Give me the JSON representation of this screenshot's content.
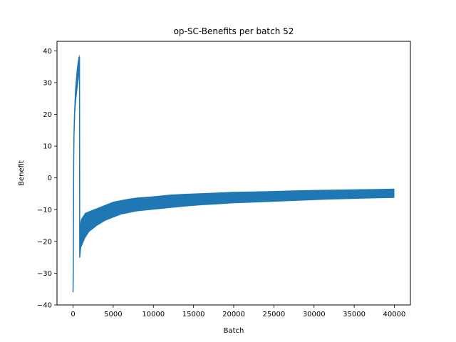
{
  "chart_data": {
    "type": "line",
    "title": "op-SC-Benefits per batch 52",
    "xlabel": "Batch",
    "ylabel": "Benefit",
    "xlim": [
      -2000,
      42000
    ],
    "ylim": [
      -40,
      43
    ],
    "xticks": [
      0,
      5000,
      10000,
      15000,
      20000,
      25000,
      30000,
      35000,
      40000
    ],
    "yticks": [
      -40,
      -30,
      -20,
      -10,
      0,
      10,
      20,
      30,
      40
    ],
    "grid": false,
    "legend": "none",
    "series": [
      {
        "color": "#1f77b4",
        "points": [
          [
            0,
            -36
          ],
          [
            20,
            -30
          ],
          [
            50,
            -15
          ],
          [
            80,
            5
          ],
          [
            120,
            14
          ],
          [
            180,
            20
          ],
          [
            250,
            24
          ],
          [
            330,
            28
          ],
          [
            420,
            31
          ],
          [
            520,
            34
          ],
          [
            640,
            36
          ],
          [
            760,
            38
          ],
          [
            800,
            38
          ],
          [
            830,
            -25
          ],
          [
            900,
            -23
          ],
          [
            1000,
            -20
          ],
          [
            1200,
            -17
          ],
          [
            1500,
            -15
          ],
          [
            2000,
            -13.5
          ],
          [
            2500,
            -12.5
          ],
          [
            3000,
            -11.5
          ],
          [
            4000,
            -10.5
          ],
          [
            5000,
            -9.8
          ],
          [
            6000,
            -9.2
          ],
          [
            7000,
            -8.8
          ],
          [
            8000,
            -8.4
          ],
          [
            9000,
            -8.1
          ],
          [
            10000,
            -7.8
          ],
          [
            12000,
            -7.3
          ],
          [
            14000,
            -7.0
          ],
          [
            16000,
            -6.7
          ],
          [
            18000,
            -6.5
          ],
          [
            20000,
            -6.3
          ],
          [
            22000,
            -6.1
          ],
          [
            24000,
            -6.0
          ],
          [
            26000,
            -5.8
          ],
          [
            28000,
            -5.7
          ],
          [
            30000,
            -5.6
          ],
          [
            32000,
            -5.5
          ],
          [
            34000,
            -5.4
          ],
          [
            36000,
            -5.2
          ],
          [
            38000,
            -5.1
          ],
          [
            40000,
            -5.0
          ]
        ],
        "band": [
          [
            830,
            -25,
            -15
          ],
          [
            1000,
            -22,
            -13
          ],
          [
            1500,
            -19,
            -11
          ],
          [
            2000,
            -17,
            -10.5
          ],
          [
            3000,
            -15,
            -9.5
          ],
          [
            4000,
            -13.5,
            -8.5
          ],
          [
            5000,
            -12.5,
            -7.5
          ],
          [
            6000,
            -11.5,
            -7
          ],
          [
            7000,
            -11,
            -6.5
          ],
          [
            8000,
            -10.5,
            -6.2
          ],
          [
            10000,
            -10,
            -5.8
          ],
          [
            12000,
            -9.5,
            -5.3
          ],
          [
            14000,
            -9,
            -5
          ],
          [
            16000,
            -8.6,
            -4.8
          ],
          [
            18000,
            -8.3,
            -4.6
          ],
          [
            20000,
            -8,
            -4.4
          ],
          [
            22000,
            -7.8,
            -4.3
          ],
          [
            25000,
            -7.5,
            -4.1
          ],
          [
            28000,
            -7.2,
            -3.9
          ],
          [
            30000,
            -7,
            -3.8
          ],
          [
            32000,
            -6.8,
            -3.7
          ],
          [
            35000,
            -6.6,
            -3.6
          ],
          [
            38000,
            -6.4,
            -3.5
          ],
          [
            40000,
            -6.3,
            -3.4
          ]
        ],
        "early_band": [
          [
            120,
            10,
            18
          ],
          [
            250,
            20,
            28
          ],
          [
            400,
            25,
            32
          ],
          [
            550,
            28,
            36
          ],
          [
            700,
            31,
            38
          ],
          [
            800,
            33,
            39
          ]
        ]
      }
    ]
  }
}
